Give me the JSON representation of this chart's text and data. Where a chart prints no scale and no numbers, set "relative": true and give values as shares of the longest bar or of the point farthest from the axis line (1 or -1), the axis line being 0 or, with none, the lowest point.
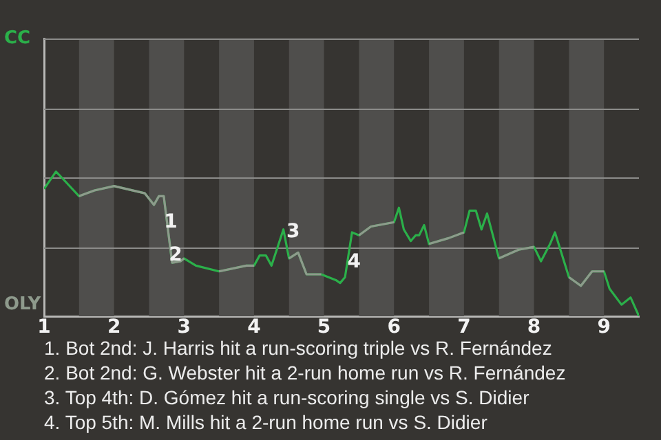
{
  "chart_data": {
    "type": "line",
    "x": [
      1,
      1.17,
      1.25,
      1.5,
      1.72,
      2,
      2.44,
      2.57,
      2.64,
      2.71,
      2.83,
      2.95,
      3,
      3.17,
      3.5,
      3.89,
      4,
      4.08,
      4.17,
      4.25,
      4.42,
      4.5,
      4.63,
      4.75,
      4.96,
      5.17,
      5.23,
      5.3,
      5.4,
      5.5,
      5.67,
      6,
      6.07,
      6.14,
      6.24,
      6.31,
      6.36,
      6.43,
      6.5,
      6.78,
      7,
      7.08,
      7.17,
      7.25,
      7.33,
      7.5,
      7.78,
      8,
      8.1,
      8.23,
      8.3,
      8.5,
      8.67,
      8.83,
      9,
      9.08,
      9.25,
      9.38,
      9.5
    ],
    "series": [
      {
        "name": "CC",
        "color": "#2bb04a",
        "values": [
          0.88,
          1,
          0.96,
          0.83,
          0.87,
          0.9,
          0.85,
          0.77,
          0.83,
          0.83,
          0.37,
          0.38,
          0.4,
          0.35,
          0.31,
          0.35,
          0.35,
          0.42,
          0.42,
          0.35,
          0.6,
          0.4,
          0.44,
          0.29,
          0.29,
          0.25,
          0.23,
          0.27,
          0.58,
          0.56,
          0.62,
          0.65,
          0.75,
          0.6,
          0.52,
          0.56,
          0.56,
          0.63,
          0.5,
          0.54,
          0.58,
          0.73,
          0.73,
          0.6,
          0.71,
          0.4,
          0.46,
          0.48,
          0.38,
          0.5,
          0.58,
          0.27,
          0.21,
          0.31,
          0.31,
          0.19,
          0.08,
          0.13,
          0
        ]
      },
      {
        "name": "OLY",
        "color": "#8e9a8c",
        "values": [
          null,
          null,
          null,
          0.83,
          0.87,
          0.9,
          0.85,
          0.77,
          0.83,
          0.83,
          0.37,
          0.38,
          0.4,
          null,
          0.31,
          0.35,
          0.35,
          null,
          null,
          null,
          null,
          0.4,
          0.44,
          0.29,
          0.29,
          null,
          null,
          null,
          null,
          0.56,
          0.62,
          0.65,
          null,
          null,
          null,
          null,
          null,
          null,
          0.5,
          0.54,
          0.58,
          null,
          null,
          null,
          null,
          0.4,
          0.46,
          0.48,
          null,
          null,
          null,
          0.27,
          0.21,
          0.31,
          0.31,
          null,
          null,
          null,
          null
        ]
      }
    ],
    "relative": true,
    "xlim": [
      1,
      9.5
    ],
    "xticks": [
      1,
      2,
      3,
      4,
      5,
      6,
      7,
      8,
      9
    ],
    "ref_lines": [
      {
        "axis": "y",
        "value": 0.48,
        "color": "#8c8c8a"
      },
      {
        "axis": "y",
        "value": 0.96,
        "color": "#8c8c8a"
      },
      {
        "axis": "y",
        "value": 1.44,
        "color": "#8c8c8a"
      },
      {
        "axis": "y",
        "value": 1.92,
        "color": "#8c8c8a"
      }
    ],
    "legend": false,
    "marker": "none",
    "line_style": "solid",
    "bands": [
      {
        "axis": "x",
        "from": 1.5,
        "to": 2,
        "color": "#4f4e4c"
      },
      {
        "axis": "x",
        "from": 2.5,
        "to": 3,
        "color": "#4f4e4c"
      },
      {
        "axis": "x",
        "from": 3.5,
        "to": 4,
        "color": "#4f4e4c"
      },
      {
        "axis": "x",
        "from": 4.5,
        "to": 5,
        "color": "#4f4e4c"
      },
      {
        "axis": "x",
        "from": 5.5,
        "to": 6,
        "color": "#4f4e4c"
      },
      {
        "axis": "x",
        "from": 6.5,
        "to": 7,
        "color": "#4f4e4c"
      },
      {
        "axis": "x",
        "from": 7.5,
        "to": 8,
        "color": "#4f4e4c"
      },
      {
        "axis": "x",
        "from": 8.5,
        "to": 9,
        "color": "#4f4e4c"
      }
    ],
    "annotations": [
      {
        "text": "1",
        "x": 2.81,
        "y": 0.65
      },
      {
        "text": "2",
        "x": 2.88,
        "y": 0.42
      },
      {
        "text": "3",
        "x": 4.56,
        "y": 0.58
      },
      {
        "text": "4",
        "x": 5.43,
        "y": 0.37
      },
      "1. Bot 2nd: J. Harris hit a run-scoring triple vs R. Fernández",
      "2. Bot 2nd: G. Webster hit a 2-run home run vs R. Fernández",
      "3. Top 4th: D. Gómez hit a run-scoring single vs S. Didier",
      "4. Top 5th: M. Mills hit a 2-run home run vs S. Didier"
    ]
  }
}
